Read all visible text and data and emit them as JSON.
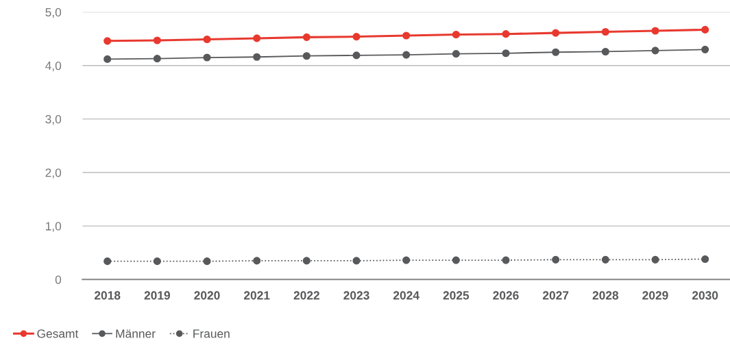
{
  "chart_data": {
    "type": "line",
    "categories": [
      "2018",
      "2019",
      "2020",
      "2021",
      "2022",
      "2023",
      "2024",
      "2025",
      "2026",
      "2027",
      "2028",
      "2029",
      "2030"
    ],
    "series": [
      {
        "name": "Gesamt",
        "color": "#e8392f",
        "values": [
          4.46,
          4.47,
          4.49,
          4.51,
          4.53,
          4.54,
          4.56,
          4.58,
          4.59,
          4.61,
          4.63,
          4.65,
          4.67
        ],
        "line_style": "solid"
      },
      {
        "name": "Männer",
        "color": "#58595b",
        "values": [
          4.12,
          4.13,
          4.15,
          4.16,
          4.18,
          4.19,
          4.2,
          4.22,
          4.23,
          4.25,
          4.26,
          4.28,
          4.3
        ],
        "line_style": "solid"
      },
      {
        "name": "Frauen",
        "color": "#58595b",
        "values": [
          0.34,
          0.34,
          0.34,
          0.35,
          0.35,
          0.35,
          0.36,
          0.36,
          0.36,
          0.37,
          0.37,
          0.37,
          0.38
        ],
        "line_style": "dotted"
      }
    ],
    "ylim": [
      0,
      5
    ],
    "yticks": [
      {
        "value": 0,
        "label": "0"
      },
      {
        "value": 1,
        "label": "1,0"
      },
      {
        "value": 2,
        "label": "2,0"
      },
      {
        "value": 3,
        "label": "3,0"
      },
      {
        "value": 4,
        "label": "4,0"
      },
      {
        "value": 5,
        "label": "5,0"
      }
    ],
    "grid": "y",
    "legend": "bottom left",
    "marker": "circle"
  }
}
